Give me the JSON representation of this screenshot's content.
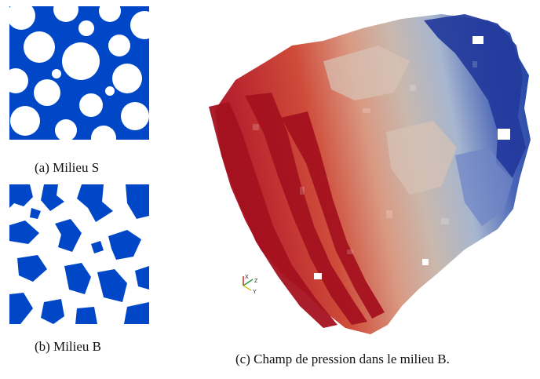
{
  "figure": {
    "panel_a": {
      "caption": "(a) Milieu S"
    },
    "panel_b": {
      "caption": "(b) Milieu B"
    },
    "panel_c": {
      "caption": "(c) Champ de pression dans le milieu B.",
      "axes": {
        "x_label": "X",
        "y_label": "Y",
        "z_label": "Z"
      },
      "colors": {
        "high": "#b2182b",
        "mid": "#c9b8ad",
        "low": "#1f3fa0"
      }
    },
    "colors": {
      "solid": "#0047c8",
      "pore": "#ffffff"
    }
  }
}
